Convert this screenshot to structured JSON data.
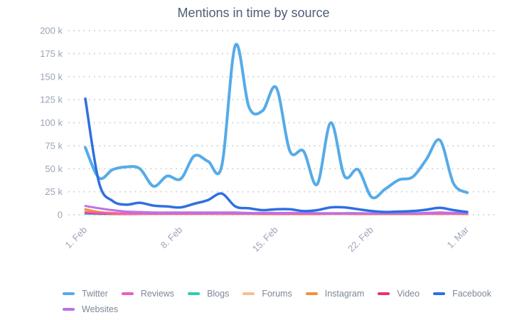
{
  "title": "Mentions in time by source",
  "chart_data": {
    "type": "line",
    "title": "Mentions in time by source",
    "x_tick_labels": [
      "1. Feb",
      "8. Feb",
      "15. Feb",
      "22. Feb",
      "1. Mar"
    ],
    "x_tick_day_index": [
      0,
      7,
      14,
      21,
      28
    ],
    "n_points": 29,
    "y_unit": "k",
    "ylim": [
      0,
      200
    ],
    "y_ticks": [
      0,
      25,
      50,
      75,
      100,
      125,
      150,
      175,
      200
    ],
    "grid": "dotted-horizontal",
    "legend_position": "bottom-left",
    "series": [
      {
        "name": "Twitter",
        "color": "#56abe8",
        "width": 4,
        "values_k": [
          73,
          40,
          49,
          52,
          50,
          31,
          42,
          39,
          64,
          58,
          53,
          184,
          117,
          113,
          138,
          69,
          69,
          33,
          100,
          42,
          49,
          19,
          28,
          38,
          41,
          60,
          81,
          34,
          24
        ]
      },
      {
        "name": "Reviews",
        "color": "#ef5bba",
        "width": 2.5,
        "values_k": [
          3,
          2,
          1.5,
          1.2,
          1.2,
          1,
          1,
          1,
          1,
          1,
          1.2,
          1,
          1,
          1,
          1,
          1,
          1,
          1,
          1,
          1,
          1,
          1,
          1,
          1,
          1,
          1,
          1.2,
          1,
          1
        ]
      },
      {
        "name": "Blogs",
        "color": "#2fcdb2",
        "width": 2.5,
        "values_k": [
          1,
          0.6,
          0.4,
          0.3,
          0.3,
          0.3,
          0.3,
          0.3,
          0.3,
          0.3,
          0.3,
          0.3,
          0.3,
          0.3,
          0.3,
          0.3,
          0.3,
          0.3,
          0.3,
          0.3,
          0.3,
          0.3,
          0.3,
          0.3,
          0.3,
          0.3,
          0.3,
          0.3,
          0.3
        ]
      },
      {
        "name": "Forums",
        "color": "#f8bd8d",
        "width": 3,
        "values_k": [
          4,
          2.5,
          1.5,
          1.2,
          1,
          0.8,
          0.8,
          0.8,
          0.8,
          0.8,
          1,
          0.8,
          0.8,
          0.6,
          0.6,
          0.6,
          0.6,
          0.6,
          0.8,
          0.8,
          0.6,
          0.6,
          0.6,
          0.6,
          0.6,
          0.8,
          1,
          0.8,
          0.6
        ]
      },
      {
        "name": "Instagram",
        "color": "#f0913c",
        "width": 3,
        "values_k": [
          6,
          3,
          2,
          1.5,
          1.2,
          1,
          1,
          1,
          1,
          1.2,
          1.5,
          1,
          1,
          0.8,
          0.8,
          0.8,
          0.8,
          0.8,
          1,
          1,
          0.8,
          0.8,
          0.8,
          0.8,
          0.8,
          1,
          1.2,
          1,
          0.8
        ]
      },
      {
        "name": "Video",
        "color": "#e63179",
        "width": 2.5,
        "values_k": [
          2,
          1.2,
          0.8,
          0.6,
          0.5,
          0.5,
          0.5,
          0.5,
          0.5,
          0.5,
          0.5,
          0.5,
          0.5,
          0.5,
          0.5,
          0.5,
          0.5,
          0.5,
          0.5,
          0.5,
          0.5,
          0.5,
          0.5,
          0.5,
          0.5,
          0.5,
          0.5,
          0.5,
          0.5
        ]
      },
      {
        "name": "Facebook",
        "color": "#2f6fe0",
        "width": 3.5,
        "values_k": [
          126,
          35,
          15,
          11,
          13,
          10,
          9,
          8,
          12,
          16,
          23,
          9,
          7,
          5,
          6,
          6,
          4,
          5,
          8,
          8,
          6,
          4,
          3,
          3.5,
          4,
          5.5,
          7.5,
          5,
          3
        ]
      },
      {
        "name": "Websites",
        "color": "#b873e8",
        "width": 3,
        "values_k": [
          9.5,
          7,
          5,
          3.5,
          3,
          2.5,
          2.5,
          2.5,
          2.5,
          2.5,
          2.5,
          2.5,
          2,
          2,
          2,
          2,
          2,
          1.8,
          1.8,
          1.8,
          1.8,
          1.5,
          1.5,
          1.5,
          1.5,
          2,
          2.5,
          2,
          1.8
        ]
      }
    ],
    "draw_order": [
      "Blogs",
      "Video",
      "Forums",
      "Instagram",
      "Reviews",
      "Websites",
      "Twitter",
      "Facebook"
    ],
    "legend_rows": [
      [
        "Twitter",
        "Reviews",
        "Blogs",
        "Forums",
        "Instagram",
        "Video",
        "Facebook"
      ],
      [
        "Websites"
      ]
    ]
  },
  "style_colors": {
    "title_text": "#4d5d77",
    "axis_text": "#9aa4b6",
    "legend_text": "#7d8798",
    "gridline": "#ccd0d8",
    "background": "#ffffff"
  }
}
